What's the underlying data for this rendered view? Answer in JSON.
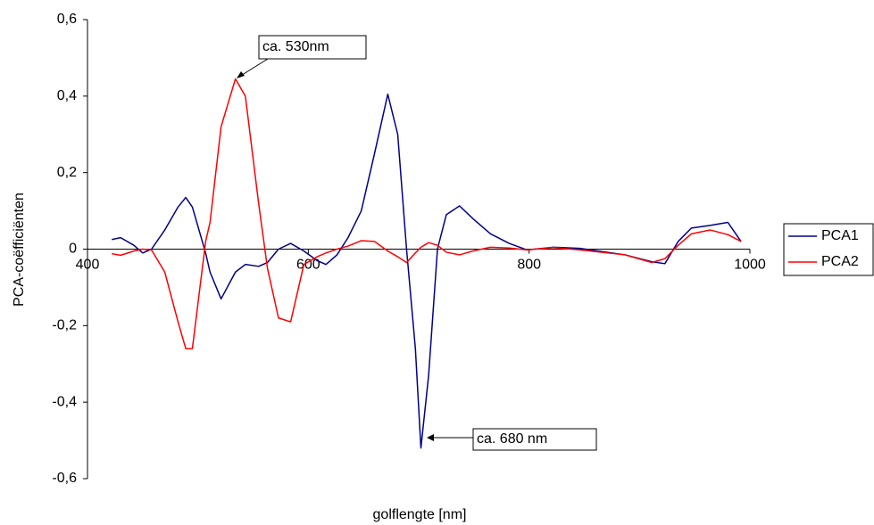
{
  "chart_data": {
    "type": "line",
    "x_label": "golflengte [nm]",
    "y_label": "PCA-coëfficiënten",
    "x": [
      422,
      430,
      442,
      450,
      458,
      470,
      482,
      489,
      495,
      507,
      511,
      521,
      534,
      543,
      555,
      563,
      573,
      584,
      596,
      608,
      616,
      626,
      636,
      648,
      660,
      672,
      681,
      689,
      697,
      702,
      709,
      717,
      725,
      737,
      749,
      765,
      782,
      798,
      822,
      846,
      887,
      911,
      923,
      935,
      947,
      964,
      980,
      992
    ],
    "series": [
      {
        "name": "PCA1",
        "color": "#00008b",
        "values": [
          0.025,
          0.03,
          0.01,
          -0.01,
          0.0,
          0.05,
          0.11,
          0.135,
          0.11,
          -0.01,
          -0.06,
          -0.13,
          -0.06,
          -0.04,
          -0.045,
          -0.035,
          0.0,
          0.015,
          -0.005,
          -0.03,
          -0.04,
          -0.015,
          0.03,
          0.1,
          0.25,
          0.405,
          0.3,
          0.0,
          -0.26,
          -0.52,
          -0.33,
          0.0,
          0.09,
          0.113,
          0.08,
          0.04,
          0.015,
          -0.002,
          0.005,
          0.002,
          -0.015,
          -0.033,
          -0.038,
          0.02,
          0.055,
          0.062,
          0.07,
          0.02
        ]
      },
      {
        "name": "PCA2",
        "color": "#ff0000",
        "values": [
          -0.012,
          -0.016,
          -0.005,
          0.0,
          -0.002,
          -0.06,
          -0.19,
          -0.26,
          -0.26,
          0.02,
          0.07,
          0.32,
          0.445,
          0.4,
          0.12,
          -0.05,
          -0.18,
          -0.19,
          -0.04,
          -0.02,
          -0.01,
          0.0,
          0.008,
          0.022,
          0.02,
          -0.005,
          -0.02,
          -0.035,
          -0.01,
          0.005,
          0.017,
          0.01,
          -0.008,
          -0.015,
          -0.005,
          0.005,
          0.003,
          -0.002,
          0.004,
          -0.002,
          -0.015,
          -0.035,
          -0.025,
          0.01,
          0.04,
          0.05,
          0.038,
          0.02
        ]
      }
    ],
    "xlim": [
      400,
      1000
    ],
    "xticks": [
      400,
      600,
      800,
      1000
    ],
    "ylim": [
      -0.6,
      0.6
    ],
    "yticks": [
      {
        "value": -0.6,
        "label": "-0,6"
      },
      {
        "value": -0.4,
        "label": "-0,4"
      },
      {
        "value": -0.2,
        "label": "-0,2"
      },
      0,
      {
        "value": 0.2,
        "label": "0,2"
      },
      {
        "value": 0.4,
        "label": "0,4"
      },
      {
        "value": 0.6,
        "label": "0,6"
      }
    ],
    "legend": "right",
    "annotations": [
      {
        "text": "ca. 530nm"
      },
      {
        "text": "ca. 680 nm"
      }
    ]
  }
}
